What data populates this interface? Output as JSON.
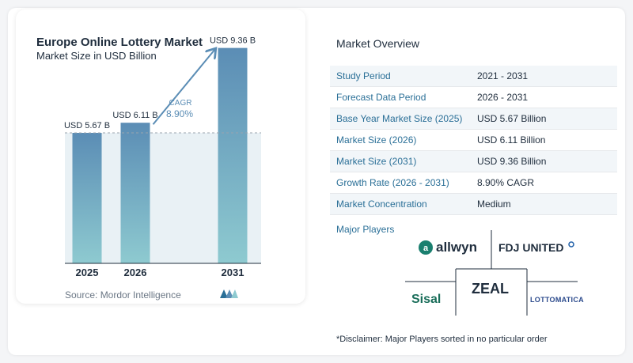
{
  "chart_data": {
    "type": "bar",
    "title": "Europe Online Lottery Market",
    "subtitle": "Market Size in USD Billion",
    "categories": [
      "2025",
      "2026",
      "2031"
    ],
    "values": [
      5.67,
      6.11,
      9.36
    ],
    "value_labels": [
      "USD 5.67 B",
      "USD 6.11 B",
      "USD 9.36 B"
    ],
    "ylim": [
      0,
      10
    ],
    "grid": false,
    "annotation": {
      "label": "CAGR",
      "value": "8.90%"
    }
  },
  "source": "Source:  Mordor Intelligence",
  "overview": {
    "title": "Market Overview",
    "rows": [
      {
        "key": "Study Period",
        "value": "2021 - 2031"
      },
      {
        "key": "Forecast Data Period",
        "value": "2026 - 2031"
      },
      {
        "key": "Base Year Market Size (2025)",
        "value": "USD 5.67 Billion"
      },
      {
        "key": "Market Size (2026)",
        "value": "USD 6.11 Billion"
      },
      {
        "key": "Market Size (2031)",
        "value": "USD 9.36 Billion"
      },
      {
        "key": "Growth Rate (2026 - 2031)",
        "value": "8.90% CAGR"
      },
      {
        "key": "Market Concentration",
        "value": "Medium"
      }
    ]
  },
  "players": {
    "label": "Major Players",
    "names": [
      "allwyn",
      "FDJ UNITED",
      "ZEAL",
      "Sisal",
      "LOTTOMATICA"
    ]
  },
  "disclaimer": "*Disclaimer: Major Players sorted in no particular order",
  "colors": {
    "bar_top": "#5b8db5",
    "bar_bottom": "#8ecad0",
    "accent": "#2a6f97",
    "baseline_band": "#dbe7ef"
  }
}
